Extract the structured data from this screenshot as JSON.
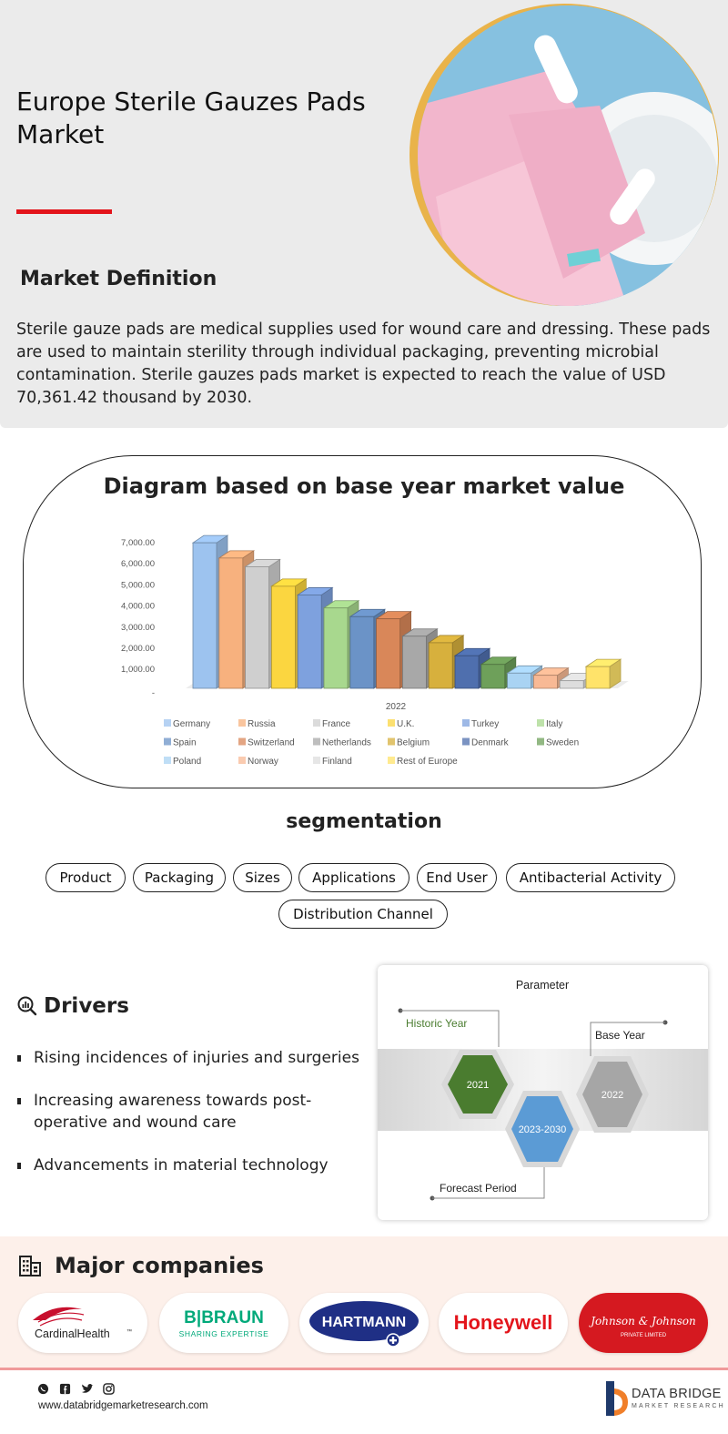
{
  "header": {
    "title": "Europe Sterile Gauzes Pads Market",
    "definition_heading": "Market Definition",
    "definition_text": "Sterile gauze pads are medical supplies used for wound care and dressing. These pads are used to maintain sterility through individual packaging, preventing microbial contamination. Sterile gauzes pads market is expected to reach the value of USD 70,361.42 thousand by 2030.",
    "accent_color": "#e3141b"
  },
  "diagram": {
    "title": "Diagram based on base year market value"
  },
  "chart_data": {
    "type": "bar",
    "categories": [
      "2022"
    ],
    "series": [
      {
        "name": "Germany",
        "values": [
          6700
        ],
        "color": "#9dc3ef"
      },
      {
        "name": "Russia",
        "values": [
          6000
        ],
        "color": "#f7b17e"
      },
      {
        "name": "France",
        "values": [
          5600
        ],
        "color": "#cfcfcf"
      },
      {
        "name": "U.K.",
        "values": [
          4700
        ],
        "color": "#fbd640"
      },
      {
        "name": "Turkey",
        "values": [
          4300
        ],
        "color": "#7ea1de"
      },
      {
        "name": "Italy",
        "values": [
          3700
        ],
        "color": "#a8d88e"
      },
      {
        "name": "Spain",
        "values": [
          3300
        ],
        "color": "#6b93c7"
      },
      {
        "name": "Switzerland",
        "values": [
          3200
        ],
        "color": "#d98759"
      },
      {
        "name": "Netherlands",
        "values": [
          2400
        ],
        "color": "#a8a8a8"
      },
      {
        "name": "Belgium",
        "values": [
          2100
        ],
        "color": "#d7b03d"
      },
      {
        "name": "Denmark",
        "values": [
          1500
        ],
        "color": "#4f6fae"
      },
      {
        "name": "Sweden",
        "values": [
          1100
        ],
        "color": "#6ea05a"
      },
      {
        "name": "Poland",
        "values": [
          700
        ],
        "color": "#a9d3f3"
      },
      {
        "name": "Norway",
        "values": [
          600
        ],
        "color": "#f8b995"
      },
      {
        "name": "Finland",
        "values": [
          350
        ],
        "color": "#dddddd"
      },
      {
        "name": "Rest of Europe",
        "values": [
          1000
        ],
        "color": "#ffe36a"
      }
    ],
    "y_ticks": [
      "7,000.00",
      "6,000.00",
      "5,000.00",
      "4,000.00",
      "3,000.00",
      "2,000.00",
      "1,000.00",
      "-"
    ],
    "xlabel": "2022",
    "ylim": [
      0,
      7000
    ],
    "grid": false,
    "legend_position": "bottom"
  },
  "segmentation": {
    "title": "segmentation",
    "items": [
      "Product",
      "Packaging",
      "Sizes",
      "Applications",
      "End User",
      "Antibacterial Activity",
      "Distribution Channel"
    ]
  },
  "drivers": {
    "title": "Drivers",
    "icon": "magnifier-chart-icon",
    "items": [
      "Rising incidences of injuries and surgeries",
      "Increasing awareness towards post-operative and wound care",
      "Advancements in material technology"
    ]
  },
  "parameter": {
    "title": "Parameter",
    "historic_label": "Historic Year",
    "historic_value": "2021",
    "forecast_value": "2023-2030",
    "forecast_label": "Forecast Period",
    "base_label": "Base Year",
    "base_value": "2022",
    "colors": {
      "historic": "#4a7c2f",
      "forecast": "#5b9bd5",
      "base": "#a6a6a6"
    }
  },
  "companies": {
    "title": "Major companies",
    "icon": "buildings-icon",
    "logos": [
      {
        "name": "CardinalHealth",
        "mark": "™",
        "color": "#c8102e"
      },
      {
        "name": "B|BRAUN",
        "tagline": "SHARING EXPERTISE",
        "color": "#00a97a"
      },
      {
        "name": "HARTMANN",
        "color": "#1f2f85"
      },
      {
        "name": "Honeywell",
        "color": "#e3141b"
      },
      {
        "name": "Johnson & Johnson",
        "tagline": "PRIVATE LIMITED",
        "color": "#d51920"
      }
    ]
  },
  "footer": {
    "website": "www.databridgemarketresearch.com",
    "social_icons": [
      "whatsapp-icon",
      "facebook-icon",
      "twitter-icon",
      "instagram-icon"
    ],
    "brand": "DATA BRIDGE",
    "brand_sub": "MARKET RESEARCH"
  }
}
